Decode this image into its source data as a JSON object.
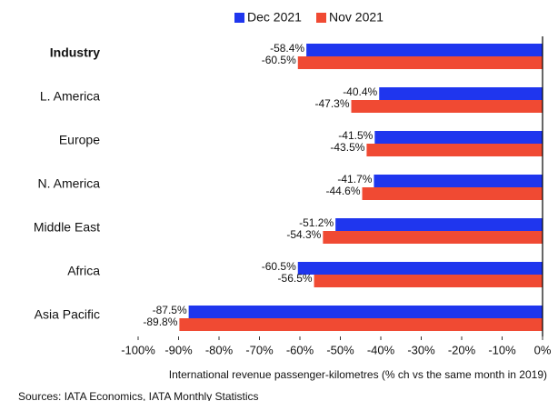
{
  "chart_data": {
    "type": "bar",
    "orientation": "horizontal",
    "categories": [
      "Industry",
      "L. America",
      "Europe",
      "N. America",
      "Middle East",
      "Africa",
      "Asia Pacific"
    ],
    "series": [
      {
        "name": "Dec 2021",
        "color": "#1f36ee",
        "values": [
          -58.4,
          -40.4,
          -41.5,
          -41.7,
          -51.2,
          -60.5,
          -87.5
        ],
        "value_labels": [
          "-58.4%",
          "-40.4%",
          "-41.5%",
          "-41.7%",
          "-51.2%",
          "-60.5%",
          "-87.5%"
        ]
      },
      {
        "name": "Nov 2021",
        "color": "#f04a33",
        "values": [
          -60.5,
          -47.3,
          -43.5,
          -44.6,
          -54.3,
          -56.5,
          -89.8
        ],
        "value_labels": [
          "-60.5%",
          "-47.3%",
          "-43.5%",
          "-44.6%",
          "-54.3%",
          "-56.5%",
          "-89.8%"
        ]
      }
    ],
    "xlim": [
      -100,
      0
    ],
    "xticks": [
      {
        "value": -100,
        "label": "-100%"
      },
      {
        "value": -90,
        "label": "-90%"
      },
      {
        "value": -80,
        "label": "-80%"
      },
      {
        "value": -70,
        "label": "-70%"
      },
      {
        "value": -60,
        "label": "-60%"
      },
      {
        "value": -50,
        "label": "-50%"
      },
      {
        "value": -40,
        "label": "-40%"
      },
      {
        "value": -30,
        "label": "-30%"
      },
      {
        "value": -20,
        "label": "-20%"
      },
      {
        "value": -10,
        "label": "-10%"
      },
      {
        "value": 0,
        "label": "0%"
      }
    ],
    "xlabel": "International revenue passenger-kilometres (% ch vs the same month in 2019)",
    "source": "Sources: IATA Economics, IATA Monthly Statistics"
  }
}
